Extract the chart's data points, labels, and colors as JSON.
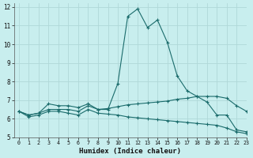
{
  "xlabel": "Humidex (Indice chaleur)",
  "bg_color": "#c8eeee",
  "grid_color": "#b0d8d8",
  "line_color": "#1a6b6b",
  "xlim": [
    -0.5,
    23
  ],
  "ylim": [
    5,
    12.2
  ],
  "yticks": [
    5,
    6,
    7,
    8,
    9,
    10,
    11,
    12
  ],
  "xticks": [
    0,
    1,
    2,
    3,
    4,
    5,
    6,
    7,
    8,
    9,
    10,
    11,
    12,
    13,
    14,
    15,
    16,
    17,
    18,
    19,
    20,
    21,
    22,
    23
  ],
  "series": [
    [
      6.4,
      6.2,
      6.3,
      6.8,
      6.7,
      6.7,
      6.6,
      6.8,
      6.5,
      6.5,
      7.9,
      11.5,
      11.9,
      10.9,
      11.3,
      10.1,
      8.3,
      7.5,
      7.2,
      6.9,
      6.2,
      6.2,
      5.4,
      5.3
    ],
    [
      6.4,
      6.2,
      6.3,
      6.5,
      6.5,
      6.5,
      6.4,
      6.7,
      6.5,
      6.55,
      6.65,
      6.75,
      6.8,
      6.85,
      6.9,
      6.95,
      7.05,
      7.1,
      7.2,
      7.2,
      7.2,
      7.1,
      6.7,
      6.4
    ],
    [
      6.4,
      6.1,
      6.2,
      6.4,
      6.4,
      6.3,
      6.2,
      6.5,
      6.3,
      6.25,
      6.2,
      6.1,
      6.05,
      6.0,
      5.95,
      5.9,
      5.85,
      5.8,
      5.75,
      5.7,
      5.65,
      5.5,
      5.3,
      5.2
    ]
  ]
}
